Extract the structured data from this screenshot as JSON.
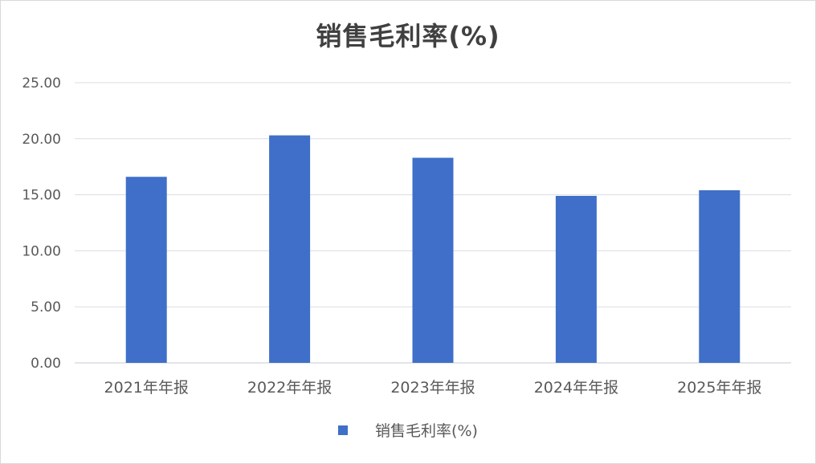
{
  "chart_data": {
    "type": "bar",
    "title": "销售毛利率(%)",
    "categories": [
      "2021年年报",
      "2022年年报",
      "2023年年报",
      "2024年年报",
      "2025年年报"
    ],
    "series": [
      {
        "name": "销售毛利率(%)",
        "values": [
          16.6,
          20.3,
          18.3,
          14.9,
          15.4
        ],
        "color": "#3f6fc8"
      }
    ],
    "ylim": [
      0,
      25
    ],
    "yticks": [
      "0.00",
      "5.00",
      "10.00",
      "15.00",
      "20.00",
      "25.00"
    ],
    "grid": true,
    "legend_position": "bottom"
  },
  "colors": {
    "bar": "#3f6fc8",
    "grid": "#d9dde3",
    "text": "#595959",
    "title": "#404040"
  }
}
